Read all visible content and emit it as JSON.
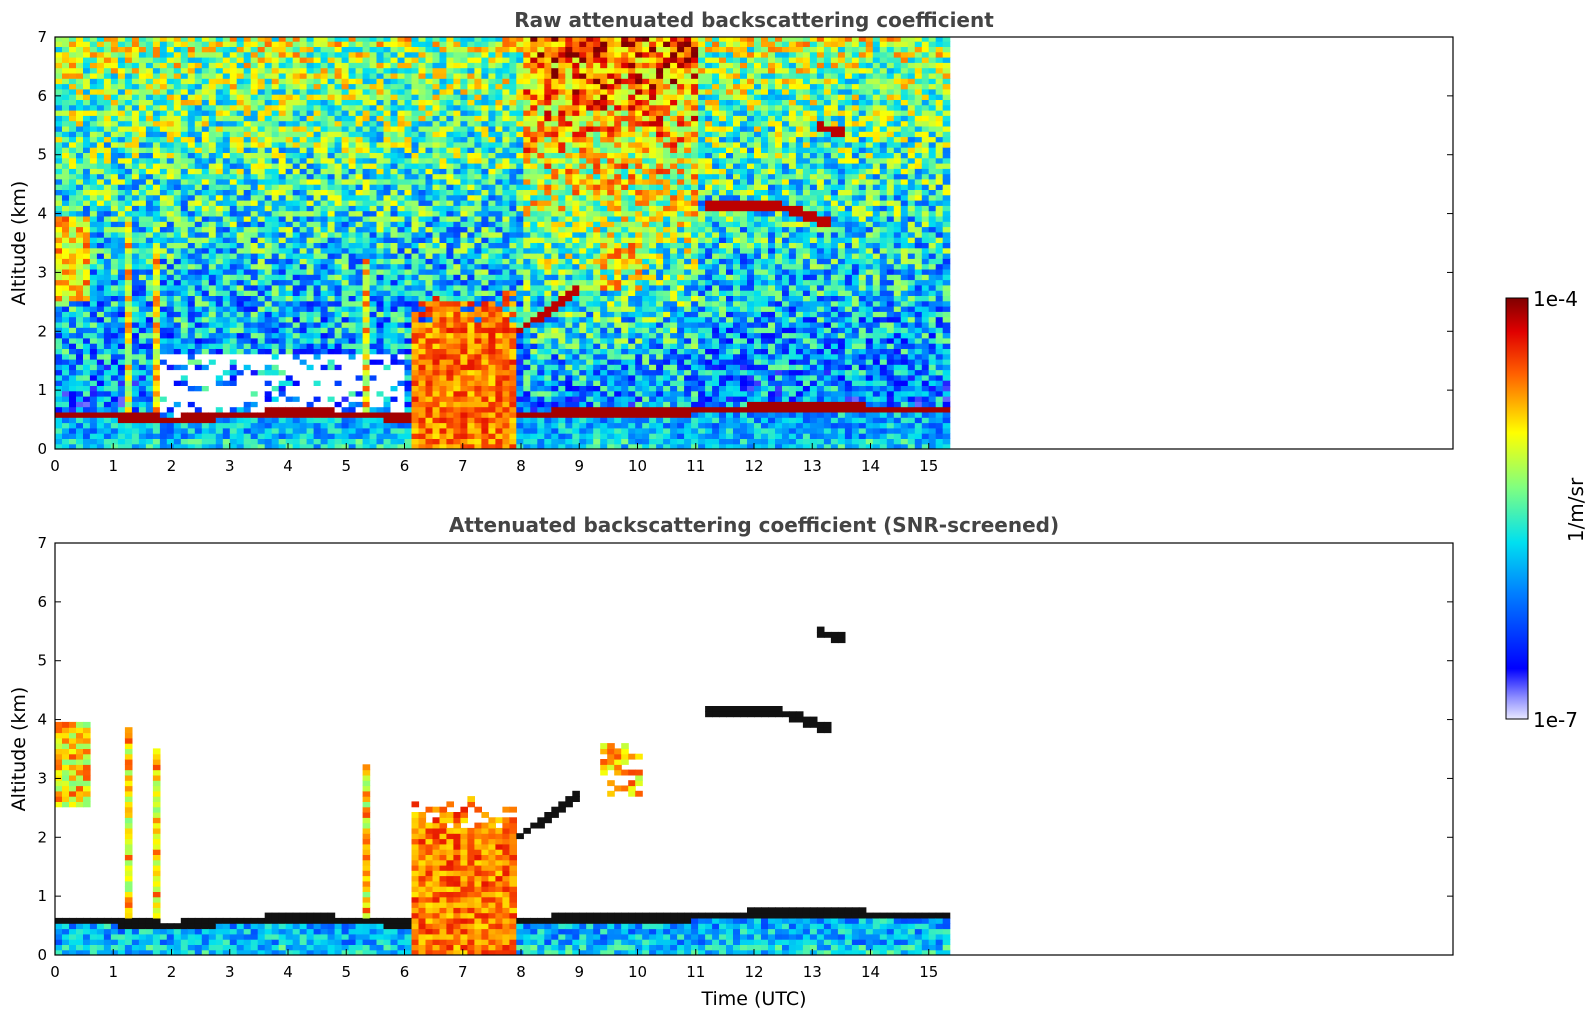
{
  "chart_data": [
    {
      "type": "heatmap",
      "title": "Raw attenuated backscattering coefficient",
      "xlabel": "",
      "ylabel": "Altitude (km)",
      "xlim": [
        0,
        24
      ],
      "ylim": [
        0,
        7
      ],
      "xticks": [
        0,
        1,
        2,
        3,
        4,
        5,
        6,
        7,
        8,
        9,
        10,
        11,
        12,
        13,
        14,
        15
      ],
      "yticks": [
        0,
        1,
        2,
        3,
        4,
        5,
        6,
        7
      ],
      "data_extent_time": [
        0,
        15.3
      ],
      "screened": false,
      "features": [
        {
          "kind": "boundary-layer-top",
          "t": [
            0,
            1.0,
            2.0,
            3.0,
            4.0,
            5.0,
            6.0,
            8.0,
            10.0,
            12.0,
            13.5,
            15.3
          ],
          "alt": [
            0.6,
            0.57,
            0.5,
            0.58,
            0.62,
            0.6,
            0.55,
            0.6,
            0.62,
            0.7,
            0.7,
            0.68
          ]
        },
        {
          "kind": "cloud",
          "t0": 11.2,
          "t1": 13.3,
          "alt": 4.15
        },
        {
          "kind": "cloud",
          "t0": 13.1,
          "t1": 13.5,
          "alt": 5.75
        },
        {
          "kind": "rising-layer",
          "t0": 7.8,
          "t1": 9.0,
          "alt0": 1.9,
          "alt1": 2.75
        },
        {
          "kind": "deep-column",
          "t0": 6.1,
          "t1": 7.9,
          "alt_top": 2.7
        },
        {
          "kind": "virga",
          "t0": 9.4,
          "t1": 10.1,
          "alt0": 2.7,
          "alt1": 3.6
        }
      ]
    },
    {
      "type": "heatmap",
      "title": "Attenuated backscattering coefficient (SNR-screened)",
      "xlabel": "Time (UTC)",
      "ylabel": "Altitude (km)",
      "xlim": [
        0,
        24
      ],
      "ylim": [
        0,
        7
      ],
      "xticks": [
        0,
        1,
        2,
        3,
        4,
        5,
        6,
        7,
        8,
        9,
        10,
        11,
        12,
        13,
        14,
        15
      ],
      "yticks": [
        0,
        1,
        2,
        3,
        4,
        5,
        6,
        7
      ],
      "data_extent_time": [
        0,
        15.3
      ],
      "screened": true
    }
  ],
  "colorbar": {
    "label": "1/m/sr",
    "max_label": "1e-4",
    "min_label": "1e-7",
    "colormap": "jet"
  }
}
